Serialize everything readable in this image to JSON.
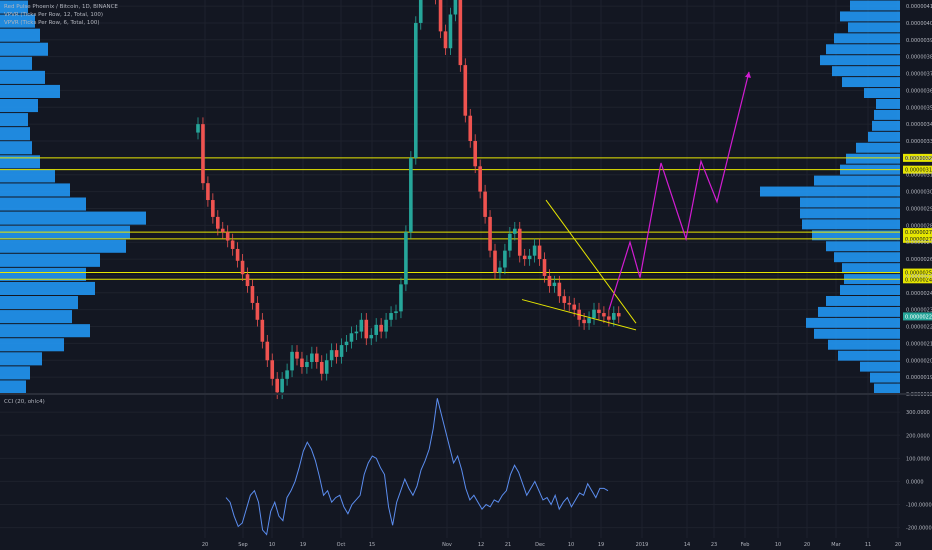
{
  "legends": {
    "main": "Red Pulse Phoenix / Bitcoin, 1D, BINANCE",
    "vpvr1": "VPVR (Ticks Per Row, 12, Total, 100)",
    "vpvr2": "VPVR (Ticks Per Row, 6, Total, 100)",
    "osc": "CCI (20, ohlc4)"
  },
  "colors": {
    "background": "#131722",
    "bull": "#26a69a",
    "bear": "#ef5350",
    "volume_profile": "#2196f3",
    "level_line": "#e6e600",
    "projection": "#d21cd2",
    "wedge": "#e6e600",
    "cci": "#5b8def",
    "axis_text": "#b2b5be",
    "highlight_label_bg": "#e6e600",
    "price_label_bg": "#26a69a"
  },
  "chart_data": [
    {
      "type": "candlestick",
      "title": "Red Pulse Phoenix / Bitcoin, 1D, BINANCE",
      "x_ticks": [
        "20",
        "Sep",
        "10",
        "19",
        "Oct",
        "15",
        "Nov",
        "12",
        "21",
        "Dec",
        "10",
        "19",
        "2019",
        "14",
        "23",
        "Feb",
        "10",
        "20",
        "Mar",
        "11",
        "20"
      ],
      "y_ticks": [
        "0.00000410",
        "0.00000400",
        "0.00000390",
        "0.00000380",
        "0.00000370",
        "0.00000360",
        "0.00000350",
        "0.00000340",
        "0.00000330",
        "0.00000320",
        "0.00000310",
        "0.00000300",
        "0.00000290",
        "0.00000280",
        "0.00000270",
        "0.00000260",
        "0.00000250",
        "0.00000240",
        "0.00000230",
        "0.00000220",
        "0.00000210",
        "0.00000200",
        "0.00000190",
        "0.00000180"
      ],
      "ylim": [
        1.8e-06,
        4.136e-06
      ],
      "level_lines": [
        "0.00000320",
        "0.00000313",
        "0.00000276",
        "0.00000272",
        "0.00000252",
        "0.00000248"
      ],
      "current_price": "0.00000226",
      "price_series": [
        3.4,
        3.05,
        2.95,
        2.85,
        2.78,
        2.76,
        2.71,
        2.66,
        2.59,
        2.51,
        2.44,
        2.34,
        2.24,
        2.11,
        2.0,
        1.89,
        1.81,
        1.89,
        1.94,
        2.05,
        2.01,
        1.96,
        1.99,
        2.04,
        1.99,
        1.92,
        2.0,
        2.06,
        2.02,
        2.09,
        2.11,
        2.16,
        2.17,
        2.24,
        2.13,
        2.15,
        2.21,
        2.17,
        2.24,
        2.28,
        2.29,
        2.45,
        2.76,
        3.2,
        4.0,
        4.5,
        4.6,
        4.4,
        4.15,
        3.95,
        3.85,
        4.05,
        4.3,
        3.75,
        3.45,
        3.3,
        3.15,
        3.0,
        2.85,
        2.65,
        2.52,
        2.55,
        2.65,
        2.75,
        2.78,
        2.62,
        2.6,
        2.62,
        2.68,
        2.6,
        2.5,
        2.44,
        2.46,
        2.38,
        2.34,
        2.33,
        2.3,
        2.24,
        2.22,
        2.25,
        2.3,
        2.28,
        2.26,
        2.24,
        2.28,
        2.26
      ],
      "projection_path": [
        2.3,
        2.7,
        2.49,
        3.17,
        2.72,
        3.18,
        2.94,
        3.71
      ]
    },
    {
      "type": "line",
      "title": "CCI (20, ohlc4)",
      "y_ticks": [
        "300.0000",
        "200.0000",
        "100.0000",
        "0.0000",
        "-100.0000",
        "-200.0000"
      ],
      "ylim": [
        -245,
        370
      ],
      "values": [
        -70,
        -90,
        -150,
        -195,
        -180,
        -120,
        -60,
        -40,
        -90,
        -210,
        -230,
        -130,
        -90,
        -150,
        -170,
        -70,
        -40,
        0,
        60,
        130,
        170,
        140,
        90,
        20,
        -60,
        -40,
        -90,
        -70,
        -60,
        -110,
        -140,
        -100,
        -80,
        -60,
        30,
        80,
        110,
        100,
        60,
        30,
        -110,
        -190,
        -90,
        -40,
        10,
        -30,
        -60,
        -20,
        50,
        90,
        140,
        230,
        360,
        290,
        220,
        150,
        80,
        110,
        50,
        -30,
        -80,
        -60,
        -90,
        -120,
        -100,
        -110,
        -80,
        -90,
        -60,
        -40,
        30,
        70,
        40,
        -10,
        -60,
        -30,
        0,
        -40,
        -80,
        -70,
        -100,
        -60,
        -120,
        -90,
        -70,
        -110,
        -80,
        -50,
        -60,
        -10,
        -40,
        -70,
        -30,
        -30,
        -40
      ]
    }
  ]
}
